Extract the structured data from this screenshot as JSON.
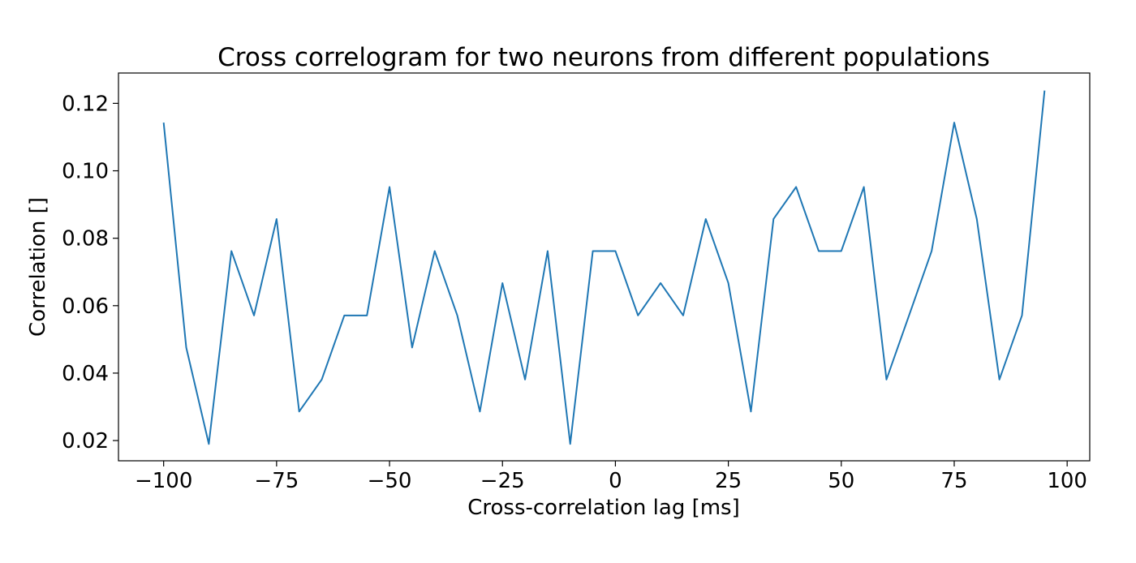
{
  "chart_data": {
    "type": "line",
    "title": "Cross correlogram for two neurons from different populations",
    "xlabel": "Cross-correlation lag [ms]",
    "ylabel": "Correlation []",
    "xlim": [
      -110,
      105
    ],
    "ylim": [
      0.014,
      0.129
    ],
    "xticks": [
      -100,
      -75,
      -50,
      -25,
      0,
      25,
      50,
      75,
      100
    ],
    "xtick_labels": [
      "−100",
      "−75",
      "−50",
      "−25",
      "0",
      "25",
      "50",
      "75",
      "100"
    ],
    "yticks": [
      0.02,
      0.04,
      0.06,
      0.08,
      0.1,
      0.12
    ],
    "ytick_labels": [
      "0.02",
      "0.04",
      "0.06",
      "0.08",
      "0.10",
      "0.12"
    ],
    "grid": false,
    "series": [
      {
        "color": "#1f77b4",
        "x": [
          -100,
          -95,
          -90,
          -85,
          -80,
          -75,
          -70,
          -65,
          -60,
          -55,
          -50,
          -45,
          -40,
          -35,
          -30,
          -25,
          -20,
          -15,
          -10,
          -5,
          0,
          5,
          10,
          15,
          20,
          25,
          30,
          35,
          40,
          45,
          50,
          55,
          60,
          65,
          70,
          75,
          80,
          85,
          90,
          95
        ],
        "values": [
          0.1143,
          0.0476,
          0.019,
          0.0762,
          0.0571,
          0.0857,
          0.0286,
          0.0381,
          0.0571,
          0.0571,
          0.0952,
          0.0476,
          0.0762,
          0.0571,
          0.0286,
          0.0667,
          0.0381,
          0.0762,
          0.019,
          0.0762,
          0.0762,
          0.0571,
          0.0667,
          0.0571,
          0.0857,
          0.0667,
          0.0286,
          0.0857,
          0.0952,
          0.0762,
          0.0762,
          0.0952,
          0.0381,
          0.0571,
          0.0762,
          0.1143,
          0.0857,
          0.0381,
          0.0571,
          0.1238
        ]
      }
    ]
  }
}
